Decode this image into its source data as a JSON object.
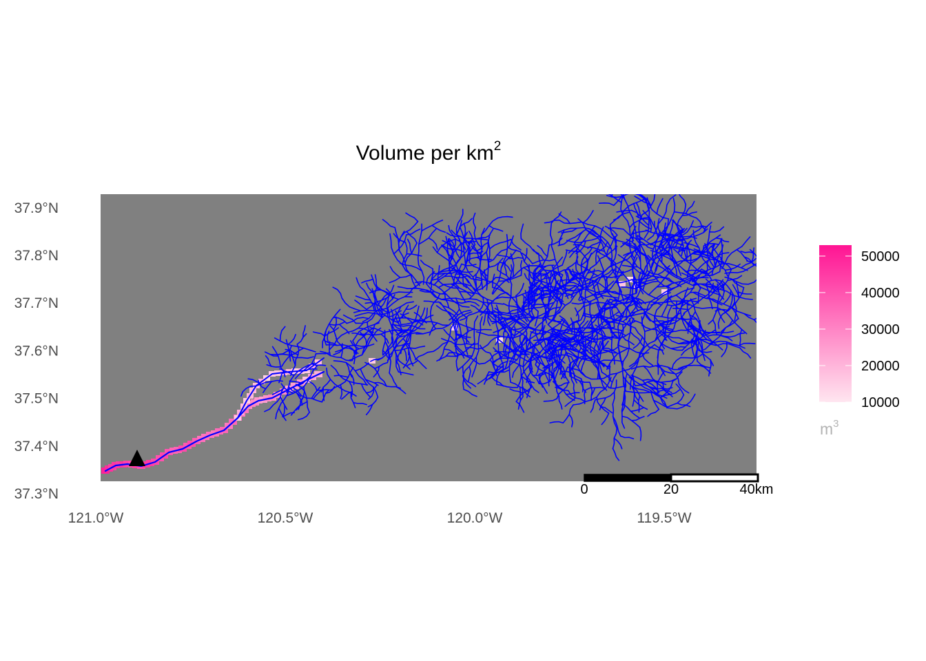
{
  "title": {
    "text": "Volume per km",
    "superscript": "2"
  },
  "map": {
    "background_color": "#808080",
    "river_color": "#0000ff",
    "x_axis_labels": [
      "121.0°W",
      "120.5°W",
      "120.0°W",
      "119.5°W"
    ],
    "y_axis_labels": [
      "37.9°N",
      "37.8°N",
      "37.7°N",
      "37.6°N",
      "37.5°N",
      "37.4°N",
      "37.3°N"
    ],
    "x_ticks": [
      -121.0,
      -120.5,
      -120.0,
      -119.5
    ],
    "y_ticks": [
      37.9,
      37.8,
      37.7,
      37.6,
      37.5,
      37.4,
      37.3
    ],
    "extent": {
      "lon": [
        -120.98,
        -119.25
      ],
      "lat": [
        37.33,
        37.93
      ]
    },
    "north_arrow_icon": "north-arrow-icon"
  },
  "legend": {
    "ticks": [
      "50000",
      "40000",
      "30000",
      "20000",
      "10000"
    ],
    "tick_values": [
      50000,
      40000,
      30000,
      20000,
      10000
    ],
    "range": [
      10000,
      53000
    ],
    "color_low": "#ffe6f0",
    "color_high": "#ff1493",
    "unit_base": "m",
    "unit_superscript": "3"
  },
  "scalebar": {
    "labels": [
      "0",
      "20",
      "40km"
    ],
    "segment_km": 20
  }
}
